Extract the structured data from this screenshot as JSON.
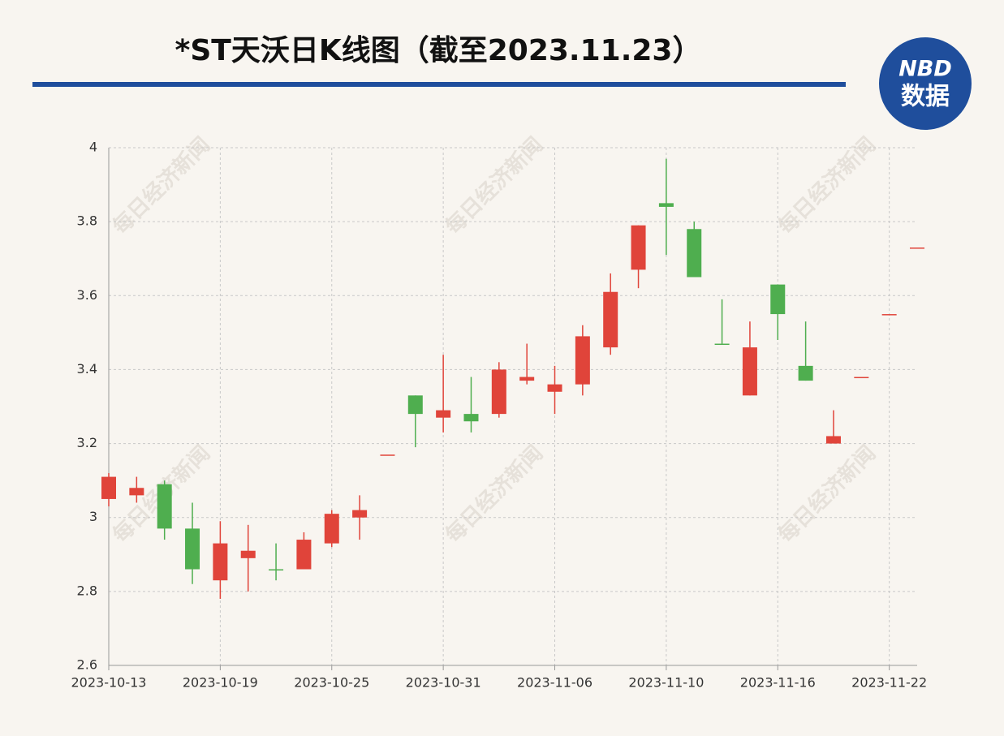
{
  "chart_data": {
    "type": "candlestick",
    "title": "*ST天沃日K线图（截至2023.11.23）",
    "watermark": "每日经济新闻",
    "logo": {
      "line1": "NBD",
      "line2": "数据"
    },
    "categories": [
      "2023-10-13",
      null,
      null,
      null,
      "2023-10-19",
      null,
      null,
      null,
      "2023-10-25",
      null,
      null,
      null,
      "2023-10-31",
      null,
      null,
      null,
      "2023-11-06",
      null,
      null,
      null,
      "2023-11-10",
      null,
      null,
      null,
      "2023-11-16",
      null,
      null,
      null,
      "2023-11-22",
      null
    ],
    "open": [
      3.05,
      3.06,
      3.09,
      2.97,
      2.83,
      2.89,
      2.86,
      2.86,
      2.93,
      3.0,
      3.17,
      3.33,
      3.27,
      3.28,
      3.28,
      3.37,
      3.34,
      3.36,
      3.46,
      3.67,
      3.85,
      3.78,
      3.47,
      3.33,
      3.63,
      3.41,
      3.2,
      3.38,
      3.55,
      3.73
    ],
    "high": [
      3.12,
      3.11,
      3.1,
      3.04,
      2.99,
      2.98,
      2.93,
      2.96,
      3.02,
      3.06,
      3.17,
      3.33,
      3.44,
      3.38,
      3.42,
      3.47,
      3.41,
      3.52,
      3.66,
      3.79,
      3.97,
      3.8,
      3.59,
      3.53,
      3.63,
      3.53,
      3.29,
      3.38,
      3.55,
      3.73
    ],
    "low": [
      3.03,
      3.04,
      2.94,
      2.82,
      2.78,
      2.8,
      2.83,
      2.86,
      2.92,
      2.94,
      3.17,
      3.19,
      3.23,
      3.23,
      3.27,
      3.36,
      3.28,
      3.33,
      3.44,
      3.62,
      3.71,
      3.65,
      3.47,
      3.33,
      3.48,
      3.37,
      3.2,
      3.38,
      3.55,
      3.73
    ],
    "close": [
      3.11,
      3.08,
      2.97,
      2.86,
      2.93,
      2.91,
      2.86,
      2.94,
      3.01,
      3.02,
      3.17,
      3.28,
      3.29,
      3.26,
      3.4,
      3.38,
      3.36,
      3.49,
      3.61,
      3.79,
      3.84,
      3.65,
      3.47,
      3.46,
      3.55,
      3.37,
      3.22,
      3.38,
      3.55,
      3.73
    ],
    "up_color": "#e0443a",
    "down_color": "#4fae4f",
    "ylim": [
      2.6,
      4
    ],
    "yticks": [
      2.6,
      2.8,
      3,
      3.2,
      3.4,
      3.6,
      3.8,
      4
    ],
    "grid": true
  }
}
